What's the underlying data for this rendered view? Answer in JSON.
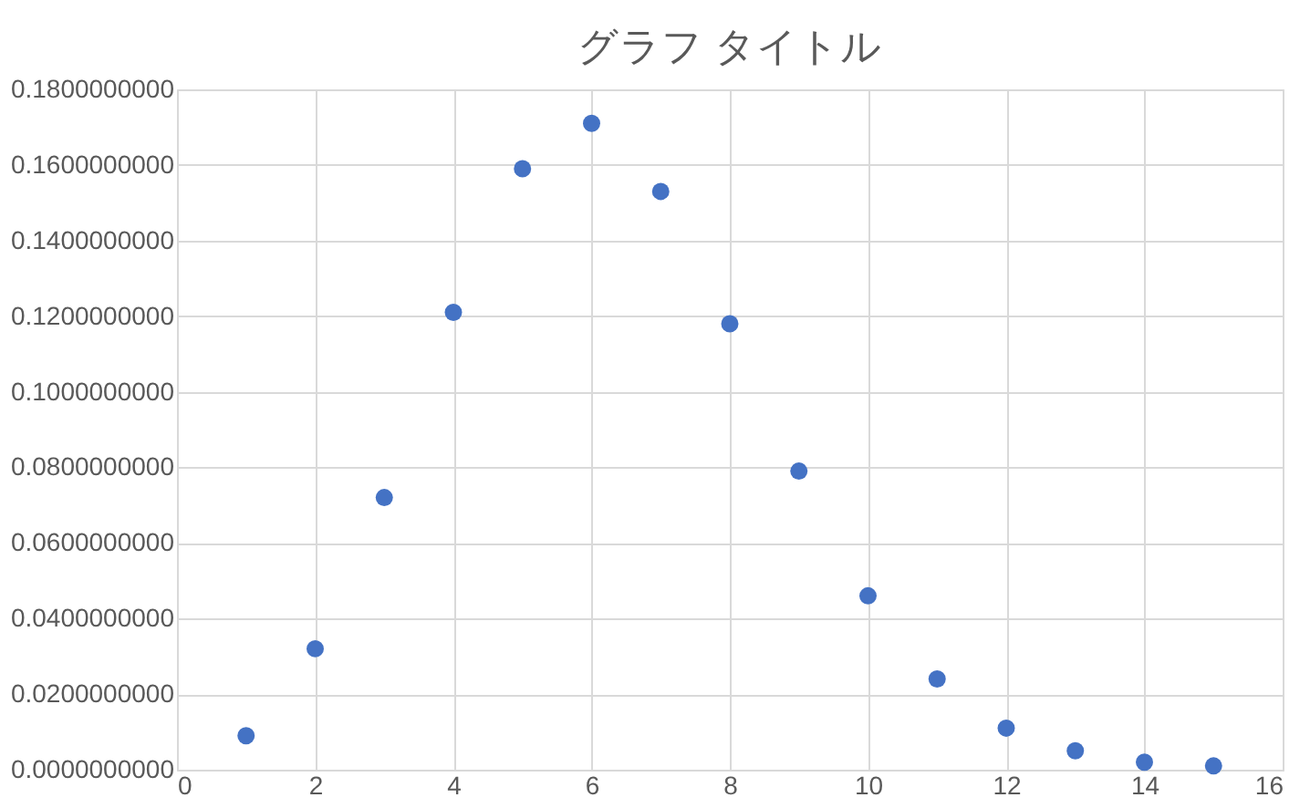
{
  "chart_data": {
    "type": "scatter",
    "title": "グラフ タイトル",
    "x": [
      1,
      2,
      3,
      4,
      5,
      6,
      7,
      8,
      9,
      10,
      11,
      12,
      13,
      14,
      15
    ],
    "series": [
      {
        "color": "#4472c4",
        "values": [
          0.009,
          0.032,
          0.072,
          0.121,
          0.159,
          0.171,
          0.153,
          0.118,
          0.079,
          0.046,
          0.024,
          0.011,
          0.005,
          0.002,
          0.001
        ]
      }
    ],
    "xlim": [
      0,
      16
    ],
    "xticks": [
      0,
      2,
      4,
      6,
      8,
      10,
      12,
      14,
      16
    ],
    "ylim": [
      0,
      0.18
    ],
    "yticks": [
      {
        "value": 0,
        "label": "0.0000000000"
      },
      {
        "value": 0.02,
        "label": "0.0200000000"
      },
      {
        "value": 0.04,
        "label": "0.0400000000"
      },
      {
        "value": 0.06,
        "label": "0.0600000000"
      },
      {
        "value": 0.08,
        "label": "0.0800000000"
      },
      {
        "value": 0.1,
        "label": "0.1000000000"
      },
      {
        "value": 0.12,
        "label": "0.1200000000"
      },
      {
        "value": 0.14,
        "label": "0.1400000000"
      },
      {
        "value": 0.16,
        "label": "0.1600000000"
      },
      {
        "value": 0.18,
        "label": "0.1800000000"
      }
    ],
    "grid": true,
    "marker": "circle",
    "legend": false
  }
}
